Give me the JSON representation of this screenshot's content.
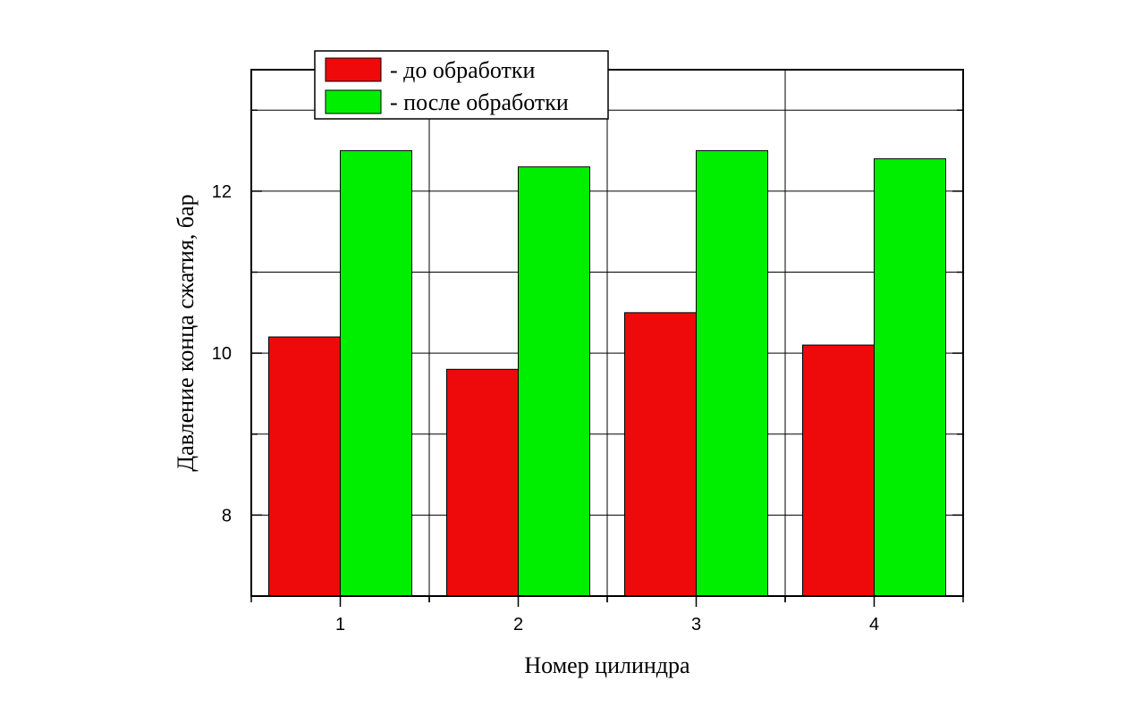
{
  "chart_data": {
    "type": "bar",
    "categories": [
      "1",
      "2",
      "3",
      "4"
    ],
    "series": [
      {
        "name": "- до обработки",
        "values": [
          10.2,
          9.8,
          10.5,
          10.1
        ],
        "color": "#ee0a0a"
      },
      {
        "name": "- после обработки",
        "values": [
          12.5,
          12.3,
          12.5,
          12.4
        ],
        "color": "#00ee00"
      }
    ],
    "xlabel": "Номер цилиндра",
    "ylabel": "Давление конца сжатия, бар",
    "ylim": [
      7,
      13.5
    ],
    "yticks": [
      8,
      10,
      12
    ],
    "grid": true,
    "legend": "top-left"
  }
}
